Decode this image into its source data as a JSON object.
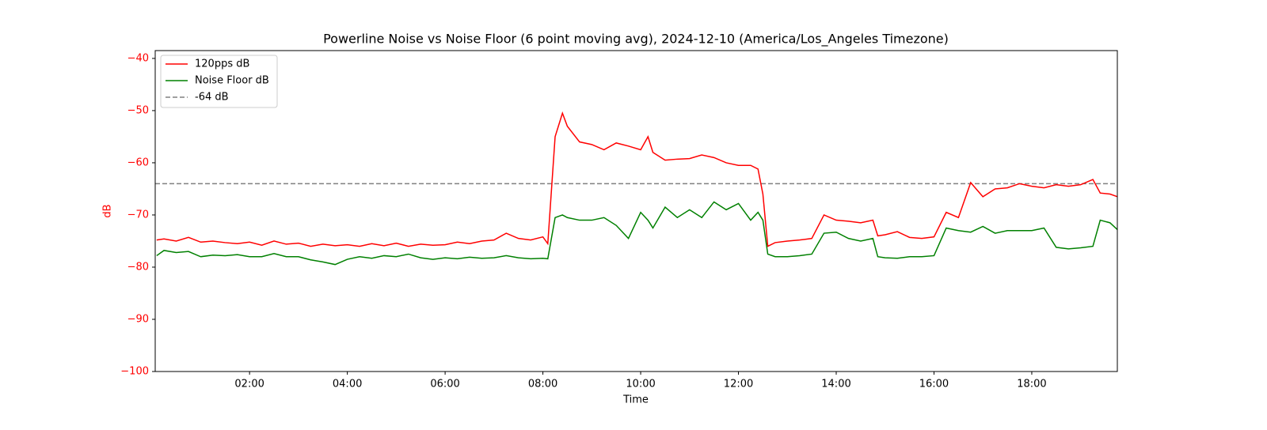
{
  "chart_data": {
    "type": "line",
    "title": "Powerline Noise vs Noise Floor (6 point moving avg), 2024-12-10 (America/Los_Angeles Timezone)",
    "xlabel": "Time",
    "ylabel": "dB",
    "ylabel_color": "#ff0000",
    "legend": "upper left",
    "xlim": [
      0.07,
      19.75
    ],
    "ylim": [
      -100,
      -38.5
    ],
    "xticks": [
      {
        "value": 2,
        "label": "02:00"
      },
      {
        "value": 4,
        "label": "04:00"
      },
      {
        "value": 6,
        "label": "06:00"
      },
      {
        "value": 8,
        "label": "08:00"
      },
      {
        "value": 10,
        "label": "10:00"
      },
      {
        "value": 12,
        "label": "12:00"
      },
      {
        "value": 14,
        "label": "14:00"
      },
      {
        "value": 16,
        "label": "16:00"
      },
      {
        "value": 18,
        "label": "18:00"
      }
    ],
    "yticks": [
      {
        "value": -100,
        "label": "−100"
      },
      {
        "value": -90,
        "label": "−90"
      },
      {
        "value": -80,
        "label": "−80"
      },
      {
        "value": -70,
        "label": "−70"
      },
      {
        "value": -60,
        "label": "−60"
      },
      {
        "value": -50,
        "label": "−50"
      },
      {
        "value": -40,
        "label": "−40"
      }
    ],
    "x": [
      0.1,
      0.25,
      0.5,
      0.75,
      1.0,
      1.25,
      1.5,
      1.75,
      2.0,
      2.25,
      2.5,
      2.75,
      3.0,
      3.25,
      3.5,
      3.75,
      4.0,
      4.25,
      4.5,
      4.75,
      5.0,
      5.25,
      5.5,
      5.75,
      6.0,
      6.25,
      6.5,
      6.75,
      7.0,
      7.25,
      7.5,
      7.75,
      8.0,
      8.1,
      8.25,
      8.4,
      8.5,
      8.75,
      9.0,
      9.25,
      9.5,
      9.75,
      10.0,
      10.15,
      10.25,
      10.5,
      10.75,
      11.0,
      11.25,
      11.5,
      11.75,
      12.0,
      12.25,
      12.4,
      12.5,
      12.6,
      12.75,
      13.0,
      13.25,
      13.5,
      13.75,
      14.0,
      14.25,
      14.5,
      14.75,
      14.85,
      15.0,
      15.25,
      15.5,
      15.75,
      16.0,
      16.25,
      16.5,
      16.75,
      17.0,
      17.25,
      17.5,
      17.75,
      18.0,
      18.25,
      18.5,
      18.75,
      19.0,
      19.25,
      19.4,
      19.6,
      19.75
    ],
    "series": [
      {
        "name": "120pps dB",
        "color": "#ff0000",
        "values": [
          -74.8,
          -74.6,
          -75,
          -74.3,
          -75.2,
          -75,
          -75.3,
          -75.5,
          -75.2,
          -75.8,
          -75,
          -75.6,
          -75.4,
          -76,
          -75.6,
          -75.9,
          -75.7,
          -76,
          -75.5,
          -75.9,
          -75.4,
          -76,
          -75.6,
          -75.8,
          -75.7,
          -75.2,
          -75.5,
          -75,
          -74.8,
          -73.5,
          -74.5,
          -74.8,
          -74.2,
          -75.5,
          -55,
          -50.5,
          -53,
          -56,
          -56.5,
          -57.5,
          -56.2,
          -56.8,
          -57.5,
          -55,
          -58,
          -59.5,
          -59.3,
          -59.2,
          -58.5,
          -59,
          -60,
          -60.5,
          -60.5,
          -61.2,
          -66,
          -76,
          -75.3,
          -75,
          -74.8,
          -74.5,
          -70,
          -71,
          -71.2,
          -71.5,
          -71,
          -74,
          -73.8,
          -73.2,
          -74.3,
          -74.5,
          -74.2,
          -69.5,
          -70.5,
          -63.8,
          -66.5,
          -65,
          -64.8,
          -64,
          -64.5,
          -64.8,
          -64.2,
          -64.5,
          -64.2,
          -63.2,
          -65.8,
          -66,
          -66.5
        ]
      },
      {
        "name": "Noise Floor dB",
        "color": "#008000",
        "values": [
          -77.8,
          -76.8,
          -77.2,
          -77,
          -78,
          -77.7,
          -77.8,
          -77.6,
          -78,
          -78,
          -77.4,
          -78,
          -78,
          -78.6,
          -79,
          -79.5,
          -78.5,
          -78,
          -78.3,
          -77.8,
          -78,
          -77.5,
          -78.2,
          -78.5,
          -78.2,
          -78.4,
          -78.1,
          -78.3,
          -78.2,
          -77.8,
          -78.2,
          -78.4,
          -78.3,
          -78.4,
          -70.5,
          -70,
          -70.5,
          -71,
          -71,
          -70.5,
          -72,
          -74.5,
          -69.5,
          -71,
          -72.5,
          -68.5,
          -70.5,
          -69,
          -70.5,
          -67.5,
          -69,
          -67.8,
          -71,
          -69.5,
          -71,
          -77.5,
          -78,
          -78,
          -77.8,
          -77.5,
          -73.5,
          -73.3,
          -74.5,
          -75,
          -74.5,
          -78,
          -78.2,
          -78.3,
          -78,
          -78,
          -77.8,
          -72.5,
          -73,
          -73.3,
          -72.2,
          -73.5,
          -73,
          -73,
          -73,
          -72.5,
          -76.2,
          -76.5,
          -76.3,
          -76,
          -71,
          -71.5,
          -72.8
        ]
      }
    ],
    "hlines": [
      {
        "name": "-64 dB",
        "value": -64,
        "color": "#808080"
      }
    ]
  }
}
